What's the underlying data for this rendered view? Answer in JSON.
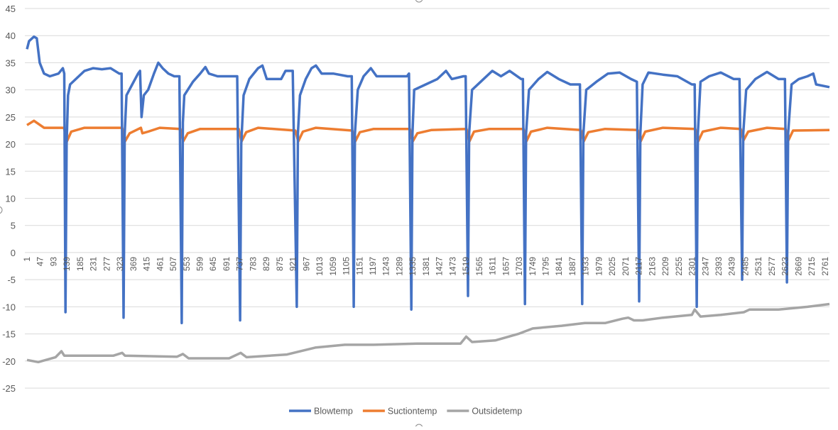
{
  "chart_data": {
    "type": "line",
    "title": "",
    "xlabel": "",
    "ylabel": "",
    "ylim": [
      -25,
      45
    ],
    "ytick_step": 5,
    "xlim": [
      1,
      2776
    ],
    "grid": true,
    "legend_position": "bottom",
    "x_tick_labels": [
      "1",
      "47",
      "93",
      "139",
      "185",
      "231",
      "277",
      "323",
      "369",
      "415",
      "461",
      "507",
      "553",
      "599",
      "645",
      "691",
      "737",
      "783",
      "829",
      "875",
      "921",
      "967",
      "1013",
      "1059",
      "1105",
      "1151",
      "1197",
      "1243",
      "1289",
      "1335",
      "1381",
      "1427",
      "1473",
      "1519",
      "1565",
      "1611",
      "1657",
      "1703",
      "1749",
      "1795",
      "1841",
      "1887",
      "1933",
      "1979",
      "2025",
      "2071",
      "2117",
      "2163",
      "2209",
      "2255",
      "2301",
      "2347",
      "2393",
      "2439",
      "2485",
      "2531",
      "2577",
      "2623",
      "2669",
      "2715",
      "2761"
    ],
    "series": [
      {
        "name": "Blowtemp",
        "color": "#4472C4",
        "points": [
          [
            1,
            37.5
          ],
          [
            8,
            39
          ],
          [
            25,
            39.8
          ],
          [
            35,
            39.5
          ],
          [
            45,
            35
          ],
          [
            60,
            33
          ],
          [
            80,
            32.5
          ],
          [
            110,
            33
          ],
          [
            125,
            34
          ],
          [
            130,
            33
          ],
          [
            134,
            -11
          ],
          [
            138,
            20
          ],
          [
            143,
            29
          ],
          [
            150,
            31
          ],
          [
            170,
            32
          ],
          [
            200,
            33.5
          ],
          [
            230,
            34
          ],
          [
            260,
            33.8
          ],
          [
            290,
            34
          ],
          [
            320,
            33
          ],
          [
            328,
            33
          ],
          [
            335,
            -12
          ],
          [
            339,
            22
          ],
          [
            345,
            29
          ],
          [
            365,
            31
          ],
          [
            385,
            33
          ],
          [
            392,
            33.5
          ],
          [
            397,
            25
          ],
          [
            405,
            29
          ],
          [
            420,
            30
          ],
          [
            440,
            33
          ],
          [
            455,
            35
          ],
          [
            470,
            34
          ],
          [
            490,
            33
          ],
          [
            510,
            32.5
          ],
          [
            528,
            32.5
          ],
          [
            536,
            -13
          ],
          [
            540,
            24
          ],
          [
            545,
            29
          ],
          [
            575,
            31.5
          ],
          [
            600,
            33
          ],
          [
            618,
            34.2
          ],
          [
            630,
            33
          ],
          [
            660,
            32.5
          ],
          [
            700,
            32.5
          ],
          [
            728,
            32.5
          ],
          [
            738,
            -12.5
          ],
          [
            742,
            20
          ],
          [
            750,
            29
          ],
          [
            770,
            32
          ],
          [
            800,
            34
          ],
          [
            815,
            34.5
          ],
          [
            830,
            32
          ],
          [
            850,
            32
          ],
          [
            880,
            32
          ],
          [
            895,
            33.5
          ],
          [
            920,
            33.5
          ],
          [
            934,
            -10
          ],
          [
            938,
            22
          ],
          [
            945,
            29
          ],
          [
            965,
            32
          ],
          [
            985,
            34
          ],
          [
            1000,
            34.5
          ],
          [
            1020,
            33
          ],
          [
            1060,
            33
          ],
          [
            1110,
            32.5
          ],
          [
            1124,
            32.5
          ],
          [
            1131,
            -10
          ],
          [
            1135,
            22
          ],
          [
            1145,
            30
          ],
          [
            1165,
            32.5
          ],
          [
            1190,
            34
          ],
          [
            1210,
            32.5
          ],
          [
            1260,
            32.5
          ],
          [
            1315,
            32.5
          ],
          [
            1322,
            33
          ],
          [
            1330,
            -10.5
          ],
          [
            1334,
            22
          ],
          [
            1340,
            30
          ],
          [
            1380,
            31
          ],
          [
            1420,
            32
          ],
          [
            1450,
            33.5
          ],
          [
            1470,
            32
          ],
          [
            1510,
            32.5
          ],
          [
            1518,
            32.5
          ],
          [
            1526,
            -8
          ],
          [
            1530,
            22
          ],
          [
            1540,
            30
          ],
          [
            1570,
            31.5
          ],
          [
            1610,
            33.5
          ],
          [
            1640,
            32.5
          ],
          [
            1670,
            33.5
          ],
          [
            1710,
            32
          ],
          [
            1716,
            32
          ],
          [
            1723,
            -9.5
          ],
          [
            1727,
            22
          ],
          [
            1737,
            30
          ],
          [
            1770,
            32
          ],
          [
            1800,
            33.3
          ],
          [
            1840,
            32
          ],
          [
            1880,
            31
          ],
          [
            1913,
            31
          ],
          [
            1921,
            -9.5
          ],
          [
            1925,
            22
          ],
          [
            1935,
            30
          ],
          [
            1970,
            31.5
          ],
          [
            2010,
            33
          ],
          [
            2050,
            33.2
          ],
          [
            2090,
            32
          ],
          [
            2110,
            31.5
          ],
          [
            2118,
            -9
          ],
          [
            2122,
            22
          ],
          [
            2130,
            31
          ],
          [
            2150,
            33.2
          ],
          [
            2200,
            32.8
          ],
          [
            2250,
            32.5
          ],
          [
            2300,
            31
          ],
          [
            2310,
            31
          ],
          [
            2317,
            -10
          ],
          [
            2321,
            22
          ],
          [
            2330,
            31.5
          ],
          [
            2360,
            32.5
          ],
          [
            2400,
            33.2
          ],
          [
            2445,
            32
          ],
          [
            2465,
            32
          ],
          [
            2474,
            -5
          ],
          [
            2478,
            22
          ],
          [
            2488,
            30
          ],
          [
            2520,
            32
          ],
          [
            2560,
            33.3
          ],
          [
            2600,
            32
          ],
          [
            2622,
            32
          ],
          [
            2629,
            -5.5
          ],
          [
            2633,
            22
          ],
          [
            2645,
            31
          ],
          [
            2670,
            32
          ],
          [
            2700,
            32.5
          ],
          [
            2720,
            33
          ],
          [
            2730,
            31
          ],
          [
            2776,
            30.5
          ]
        ]
      },
      {
        "name": "Suctiontemp",
        "color": "#ED7D31",
        "points": [
          [
            1,
            23.5
          ],
          [
            25,
            24.3
          ],
          [
            60,
            23
          ],
          [
            129,
            23
          ],
          [
            139,
            20.5
          ],
          [
            154,
            22.3
          ],
          [
            200,
            23
          ],
          [
            330,
            23
          ],
          [
            340,
            20.5
          ],
          [
            356,
            22
          ],
          [
            395,
            23
          ],
          [
            400,
            22
          ],
          [
            420,
            22.3
          ],
          [
            460,
            23
          ],
          [
            531,
            22.8
          ],
          [
            541,
            20.5
          ],
          [
            557,
            22
          ],
          [
            600,
            22.8
          ],
          [
            733,
            22.8
          ],
          [
            743,
            20.5
          ],
          [
            759,
            22.2
          ],
          [
            800,
            23
          ],
          [
            929,
            22.5
          ],
          [
            939,
            20.5
          ],
          [
            955,
            22.3
          ],
          [
            1000,
            23
          ],
          [
            1126,
            22.5
          ],
          [
            1136,
            20.5
          ],
          [
            1152,
            22.2
          ],
          [
            1200,
            22.8
          ],
          [
            1325,
            22.8
          ],
          [
            1335,
            20.5
          ],
          [
            1351,
            22
          ],
          [
            1400,
            22.6
          ],
          [
            1521,
            22.8
          ],
          [
            1531,
            20.5
          ],
          [
            1547,
            22.3
          ],
          [
            1600,
            22.8
          ],
          [
            1718,
            22.8
          ],
          [
            1728,
            20.5
          ],
          [
            1744,
            22.3
          ],
          [
            1800,
            23
          ],
          [
            1916,
            22.6
          ],
          [
            1926,
            20.5
          ],
          [
            1942,
            22.2
          ],
          [
            2000,
            22.8
          ],
          [
            2113,
            22.6
          ],
          [
            2123,
            20.5
          ],
          [
            2139,
            22.3
          ],
          [
            2200,
            23
          ],
          [
            2312,
            22.8
          ],
          [
            2322,
            20.5
          ],
          [
            2338,
            22.3
          ],
          [
            2400,
            23
          ],
          [
            2469,
            22.8
          ],
          [
            2479,
            20.7
          ],
          [
            2495,
            22.3
          ],
          [
            2560,
            23
          ],
          [
            2624,
            22.8
          ],
          [
            2634,
            20.7
          ],
          [
            2650,
            22.5
          ],
          [
            2776,
            22.6
          ]
        ]
      },
      {
        "name": "Outsidetemp",
        "color": "#A5A5A5",
        "points": [
          [
            1,
            -19.8
          ],
          [
            40,
            -20.2
          ],
          [
            100,
            -19.3
          ],
          [
            120,
            -18.2
          ],
          [
            130,
            -19
          ],
          [
            300,
            -19
          ],
          [
            330,
            -18.5
          ],
          [
            340,
            -19
          ],
          [
            520,
            -19.2
          ],
          [
            540,
            -18.7
          ],
          [
            560,
            -19.5
          ],
          [
            700,
            -19.5
          ],
          [
            740,
            -18.5
          ],
          [
            760,
            -19.3
          ],
          [
            900,
            -18.8
          ],
          [
            1000,
            -17.5
          ],
          [
            1100,
            -17
          ],
          [
            1200,
            -17
          ],
          [
            1350,
            -16.8
          ],
          [
            1500,
            -16.8
          ],
          [
            1520,
            -15.5
          ],
          [
            1540,
            -16.5
          ],
          [
            1620,
            -16.2
          ],
          [
            1700,
            -15
          ],
          [
            1750,
            -14
          ],
          [
            1850,
            -13.5
          ],
          [
            1930,
            -13
          ],
          [
            2000,
            -13
          ],
          [
            2060,
            -12.2
          ],
          [
            2080,
            -12
          ],
          [
            2100,
            -12.5
          ],
          [
            2130,
            -12.5
          ],
          [
            2200,
            -12
          ],
          [
            2300,
            -11.5
          ],
          [
            2310,
            -10.5
          ],
          [
            2330,
            -11.8
          ],
          [
            2400,
            -11.5
          ],
          [
            2480,
            -11
          ],
          [
            2500,
            -10.5
          ],
          [
            2600,
            -10.5
          ],
          [
            2700,
            -10
          ],
          [
            2776,
            -9.5
          ]
        ]
      }
    ]
  }
}
